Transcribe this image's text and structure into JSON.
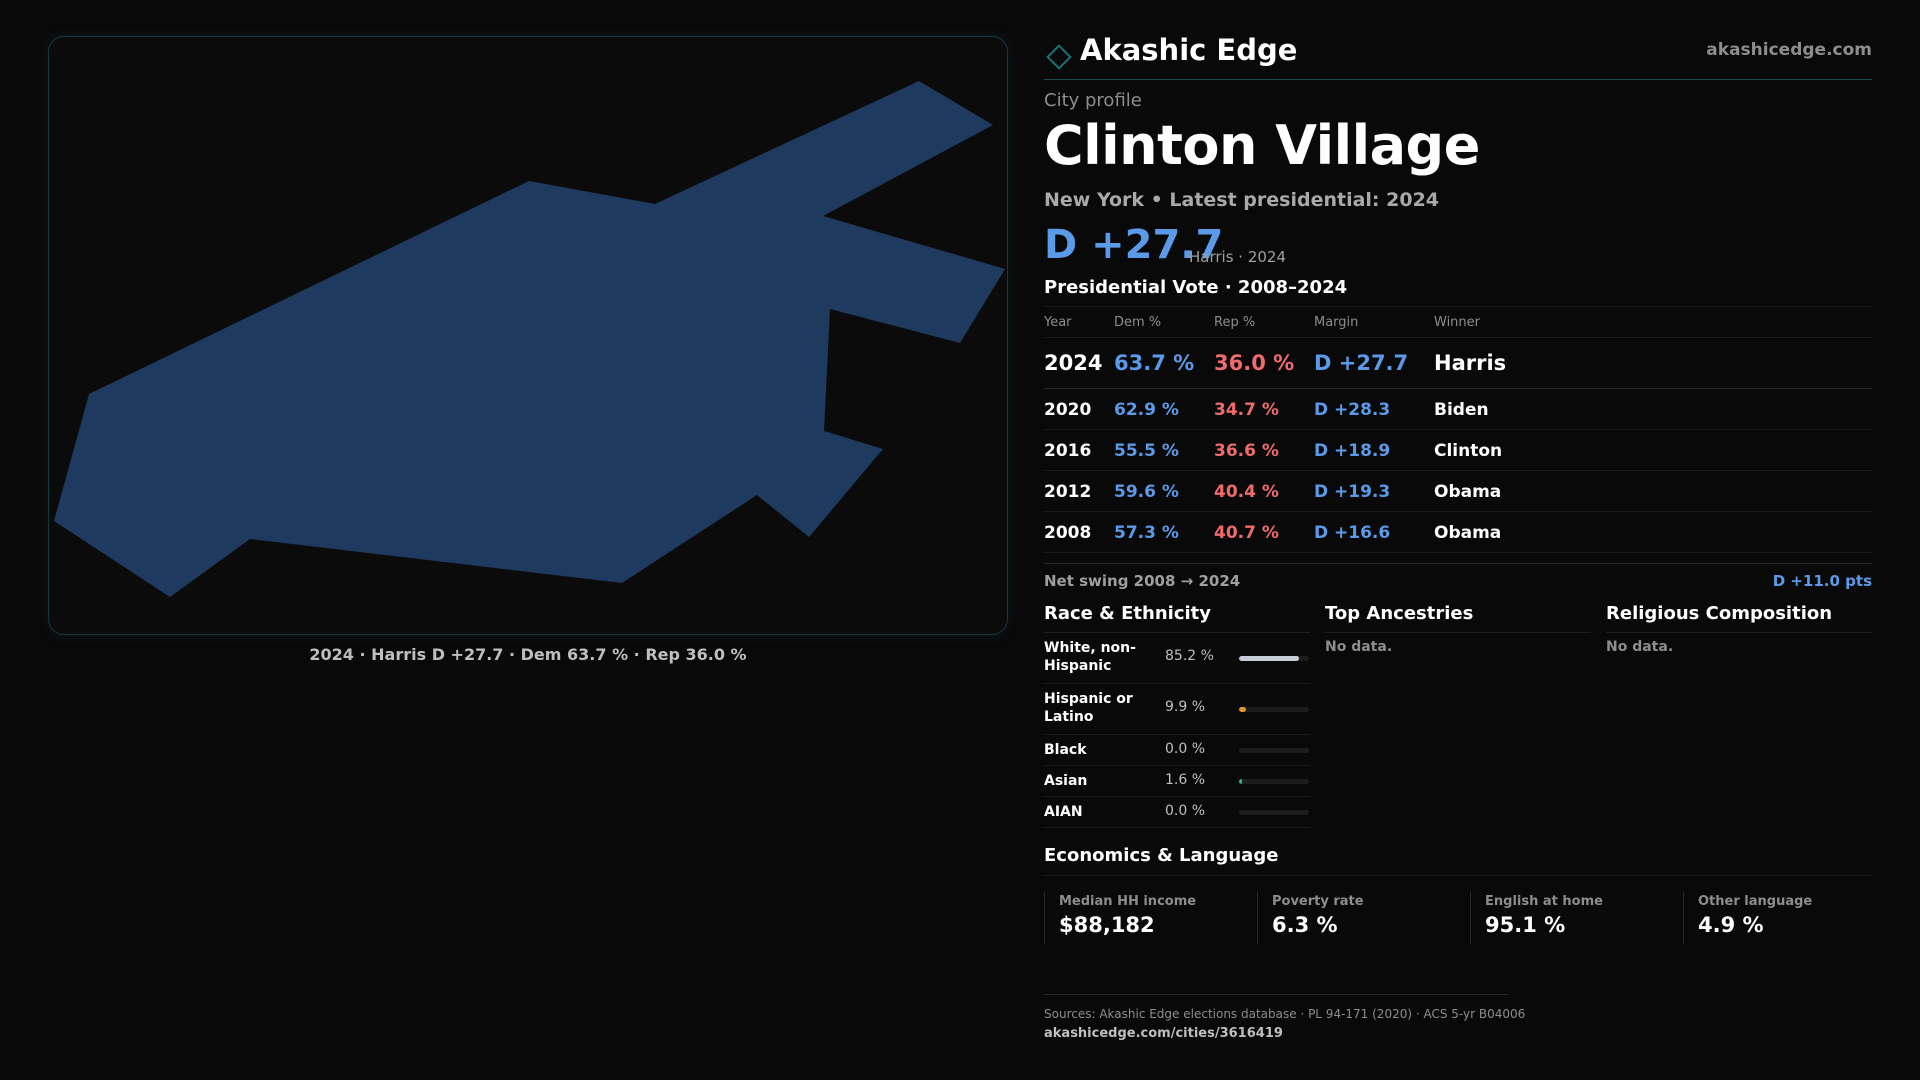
{
  "brand": {
    "name": "Akashic Edge",
    "url": "akashicedge.com",
    "accent": "#1c6f77"
  },
  "map": {
    "caption": "2024 · Harris D +27.7 · Dem 63.7 % · Rep 36.0 %",
    "fill_color": "#1f3a5f",
    "border_color": "#133a3f"
  },
  "profile": {
    "eyebrow": "City profile",
    "title": "Clinton Village",
    "subtitle": "New York  • Latest presidential: 2024",
    "headline_margin": "D +27.7",
    "headline_winner": "Harris · 2024"
  },
  "results": {
    "title": "Presidential Vote · 2008–2024",
    "headers": {
      "year": "Year",
      "dem": "Dem %",
      "rep": "Rep %",
      "margin": "Margin",
      "winner": "Winner"
    },
    "rows": [
      {
        "year": "2024",
        "dem": "63.7 %",
        "rep": "36.0 %",
        "margin": "D +27.7",
        "winner": "Harris"
      },
      {
        "year": "2020",
        "dem": "62.9 %",
        "rep": "34.7 %",
        "margin": "D +28.3",
        "winner": "Biden"
      },
      {
        "year": "2016",
        "dem": "55.5 %",
        "rep": "36.6 %",
        "margin": "D +18.9",
        "winner": "Clinton"
      },
      {
        "year": "2012",
        "dem": "59.6 %",
        "rep": "40.4 %",
        "margin": "D +19.3",
        "winner": "Obama"
      },
      {
        "year": "2008",
        "dem": "57.3 %",
        "rep": "40.7 %",
        "margin": "D +16.6",
        "winner": "Obama"
      }
    ],
    "colors": {
      "dem": "#5a9ae8",
      "rep": "#f06b6b"
    }
  },
  "swing": {
    "label": "Net swing 2008 → 2024",
    "value": "D +11.0 pts"
  },
  "race": {
    "title": "Race & Ethnicity",
    "rows": [
      {
        "label": "White, non-Hispanic",
        "pct": "85.2 %",
        "share": 0.852,
        "color": "#c7cdd6"
      },
      {
        "label": "Hispanic or Latino",
        "pct": "9.9 %",
        "share": 0.099,
        "color": "#e0962e"
      },
      {
        "label": "Black",
        "pct": "0.0 %",
        "share": 0.0,
        "color": "#9aa3ad"
      },
      {
        "label": "Asian",
        "pct": "1.6 %",
        "share": 0.016,
        "color": "#2fb59a"
      },
      {
        "label": "AIAN",
        "pct": "0.0 %",
        "share": 0.0,
        "color": "#9aa3ad"
      }
    ]
  },
  "ancestries": {
    "title": "Top Ancestries",
    "empty": "No data."
  },
  "religion": {
    "title": "Religious Composition",
    "empty": "No data."
  },
  "economics": {
    "title": "Economics & Language",
    "cells": [
      {
        "label": "Median HH income",
        "value": "$88,182"
      },
      {
        "label": "Poverty rate",
        "value": "6.3 %"
      },
      {
        "label": "English at home",
        "value": "95.1 %"
      },
      {
        "label": "Other language",
        "value": "4.9 %"
      }
    ]
  },
  "footer": {
    "sources": "Sources: Akashic Edge elections database · PL 94-171 (2020) · ACS 5-yr B04006",
    "link": "akashicedge.com/cities/3616419"
  }
}
